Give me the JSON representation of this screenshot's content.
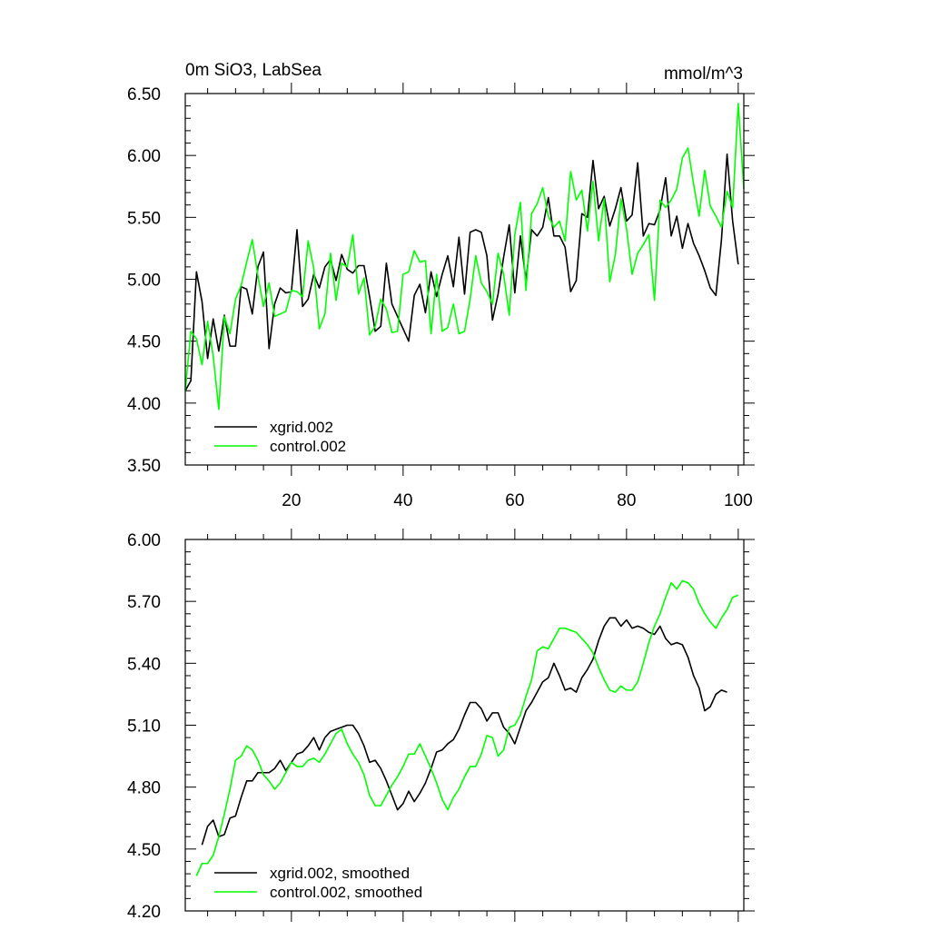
{
  "chart_data": [
    {
      "type": "line",
      "title": "0m SiO3, LabSea",
      "units": "mmol/m^3",
      "xlim": [
        1,
        101
      ],
      "ylim": [
        3.5,
        6.5
      ],
      "yticks": [
        "3.50",
        "4.00",
        "4.50",
        "5.00",
        "5.50",
        "6.00",
        "6.50"
      ],
      "xticks": [
        "20",
        "40",
        "60",
        "80",
        "100"
      ],
      "legend_position": "bottom-left",
      "series": [
        {
          "name": "xgrid.002",
          "color": "#000000",
          "x_start": 1,
          "values": [
            4.1,
            4.18,
            5.06,
            4.82,
            4.36,
            4.68,
            4.42,
            4.71,
            4.46,
            4.46,
            4.94,
            4.92,
            4.72,
            5.1,
            5.22,
            4.44,
            4.8,
            4.93,
            4.89,
            4.9,
            5.4,
            4.78,
            4.84,
            5.04,
            4.93,
            5.1,
            5.16,
            4.99,
            5.2,
            5.08,
            5.05,
            5.11,
            5.11,
            4.86,
            4.58,
            4.62,
            5.13,
            4.8,
            4.7,
            4.6,
            4.5,
            4.87,
            4.96,
            4.73,
            5.06,
            4.86,
            5.04,
            5.19,
            4.94,
            5.34,
            4.88,
            5.38,
            5.4,
            5.38,
            5.19,
            4.67,
            4.88,
            5.18,
            5.44,
            4.89,
            5.35,
            4.99,
            5.4,
            5.35,
            5.42,
            5.66,
            5.35,
            5.35,
            5.26,
            4.9,
            4.99,
            5.53,
            5.5,
            5.96,
            5.57,
            5.67,
            5.43,
            5.57,
            5.74,
            5.47,
            5.52,
            5.94,
            5.35,
            5.45,
            5.44,
            5.56,
            5.82,
            5.35,
            5.51,
            5.25,
            5.45,
            5.29,
            5.19,
            5.07,
            4.93,
            4.87,
            5.32,
            6.01,
            5.47,
            5.12
          ]
        },
        {
          "name": "control.002",
          "color": "#00ff00",
          "x_start": 1,
          "values": [
            4.1,
            4.58,
            4.52,
            4.31,
            4.66,
            4.38,
            3.95,
            4.7,
            4.56,
            4.84,
            4.95,
            5.14,
            5.32,
            5.03,
            4.78,
            4.97,
            4.7,
            4.72,
            4.74,
            4.91,
            4.9,
            4.86,
            5.31,
            5.09,
            4.6,
            4.72,
            5.21,
            4.83,
            5.13,
            5.1,
            5.36,
            4.88,
            5.01,
            4.55,
            4.62,
            4.84,
            4.76,
            4.57,
            4.58,
            5.04,
            5.06,
            5.23,
            5.14,
            5.15,
            4.56,
            5.04,
            4.58,
            4.61,
            4.8,
            4.56,
            4.58,
            4.84,
            5.19,
            4.97,
            4.9,
            4.8,
            5.21,
            5.04,
            4.71,
            5.36,
            5.62,
            4.91,
            5.53,
            5.61,
            5.74,
            5.51,
            5.42,
            5.47,
            5.31,
            5.87,
            5.64,
            5.72,
            5.39,
            5.79,
            5.31,
            5.65,
            4.98,
            5.2,
            5.65,
            5.41,
            5.04,
            5.21,
            5.28,
            5.36,
            4.83,
            5.64,
            5.58,
            5.64,
            5.73,
            5.98,
            6.06,
            5.77,
            5.51,
            5.88,
            5.59,
            5.51,
            5.42,
            5.71,
            5.58,
            6.42,
            5.73
          ]
        }
      ]
    },
    {
      "type": "line",
      "title": "",
      "units": "",
      "xlim": [
        1,
        101
      ],
      "ylim": [
        4.2,
        6.0
      ],
      "yticks": [
        "4.20",
        "4.50",
        "4.80",
        "5.10",
        "5.40",
        "5.70",
        "6.00"
      ],
      "xticks": [],
      "legend_position": "bottom-left",
      "series": [
        {
          "name": "xgrid.002, smoothed",
          "color": "#000000",
          "x_start": 4,
          "values": [
            4.52,
            4.61,
            4.64,
            4.56,
            4.57,
            4.65,
            4.66,
            4.75,
            4.83,
            4.83,
            4.87,
            4.87,
            4.87,
            4.89,
            4.93,
            4.88,
            4.92,
            4.96,
            4.97,
            5.0,
            5.04,
            4.98,
            5.04,
            5.07,
            5.08,
            5.09,
            5.1,
            5.1,
            5.06,
            5.0,
            4.92,
            4.93,
            4.89,
            4.83,
            4.76,
            4.69,
            4.72,
            4.78,
            4.73,
            4.77,
            4.82,
            4.89,
            4.97,
            4.98,
            5.01,
            5.03,
            5.08,
            5.15,
            5.21,
            5.21,
            5.18,
            5.12,
            5.16,
            5.16,
            5.09,
            5.06,
            5.01,
            5.09,
            5.17,
            5.21,
            5.26,
            5.31,
            5.33,
            5.4,
            5.34,
            5.27,
            5.28,
            5.26,
            5.33,
            5.37,
            5.42,
            5.51,
            5.58,
            5.62,
            5.62,
            5.58,
            5.61,
            5.57,
            5.58,
            5.57,
            5.55,
            5.54,
            5.58,
            5.52,
            5.49,
            5.5,
            5.49,
            5.43,
            5.34,
            5.28,
            5.17,
            5.19,
            5.25,
            5.27,
            5.26
          ]
        },
        {
          "name": "control.002, smoothed",
          "color": "#00ff00",
          "x_start": 3,
          "values": [
            4.37,
            4.43,
            4.43,
            4.47,
            4.56,
            4.67,
            4.79,
            4.93,
            4.95,
            5.0,
            4.98,
            4.93,
            4.86,
            4.83,
            4.79,
            4.82,
            4.87,
            4.92,
            4.9,
            4.9,
            4.93,
            4.94,
            4.92,
            4.96,
            5.01,
            5.06,
            5.08,
            5.01,
            4.96,
            4.92,
            4.86,
            4.76,
            4.71,
            4.71,
            4.76,
            4.81,
            4.85,
            4.9,
            4.96,
            4.96,
            5.01,
            4.95,
            4.89,
            4.82,
            4.74,
            4.69,
            4.75,
            4.79,
            4.85,
            4.9,
            4.9,
            4.96,
            5.05,
            5.04,
            4.95,
            4.98,
            5.09,
            5.1,
            5.15,
            5.24,
            5.32,
            5.46,
            5.48,
            5.47,
            5.52,
            5.57,
            5.57,
            5.56,
            5.55,
            5.52,
            5.49,
            5.45,
            5.38,
            5.32,
            5.27,
            5.26,
            5.29,
            5.27,
            5.27,
            5.31,
            5.4,
            5.5,
            5.58,
            5.64,
            5.72,
            5.79,
            5.76,
            5.8,
            5.79,
            5.76,
            5.69,
            5.64,
            5.6,
            5.57,
            5.62,
            5.66,
            5.72,
            5.73
          ]
        }
      ]
    }
  ]
}
